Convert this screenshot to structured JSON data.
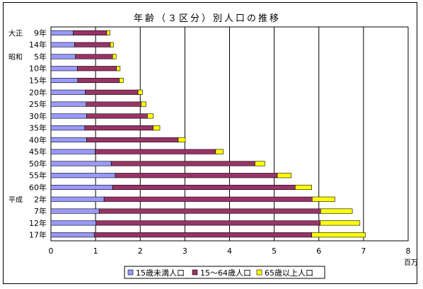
{
  "chart_data": {
    "type": "bar",
    "orientation": "horizontal",
    "stacked": true,
    "title": "年齢（３区分）別人口の推移",
    "unit_label": "百万",
    "xlim": [
      0,
      8
    ],
    "x_ticks": [
      "0",
      "1",
      "2",
      "3",
      "4",
      "5",
      "6",
      "7",
      "8"
    ],
    "grid": true,
    "legend_position": "bottom",
    "category_labels": [
      {
        "era": "大正",
        "year": "9年"
      },
      {
        "era": "",
        "year": "14年"
      },
      {
        "era": "昭和",
        "year": "5年"
      },
      {
        "era": "",
        "year": "10年"
      },
      {
        "era": "",
        "year": "15年"
      },
      {
        "era": "",
        "year": "20年"
      },
      {
        "era": "",
        "year": "25年"
      },
      {
        "era": "",
        "year": "30年"
      },
      {
        "era": "",
        "year": "35年"
      },
      {
        "era": "",
        "year": "40年"
      },
      {
        "era": "",
        "year": "45年"
      },
      {
        "era": "",
        "year": "50年"
      },
      {
        "era": "",
        "year": "55年"
      },
      {
        "era": "",
        "year": "60年"
      },
      {
        "era": "平成",
        "year": "2年"
      },
      {
        "era": "",
        "year": "7年"
      },
      {
        "era": "",
        "year": "12年"
      },
      {
        "era": "",
        "year": "17年"
      }
    ],
    "series": [
      {
        "name": "15歳未満人口",
        "color": "#9999ff",
        "values": [
          0.5,
          0.53,
          0.55,
          0.59,
          0.6,
          0.77,
          0.79,
          0.8,
          0.76,
          0.8,
          0.99,
          1.35,
          1.44,
          1.38,
          1.19,
          1.08,
          1.01,
          0.97
        ]
      },
      {
        "name": "15～64歳人口",
        "color": "#993366",
        "values": [
          0.75,
          0.8,
          0.83,
          0.88,
          0.93,
          1.18,
          1.23,
          1.36,
          1.53,
          2.05,
          2.7,
          3.22,
          3.63,
          4.09,
          4.66,
          4.96,
          5.02,
          4.87
        ]
      },
      {
        "name": "65歳以上人口",
        "color": "#ffff00",
        "values": [
          0.07,
          0.07,
          0.08,
          0.08,
          0.09,
          0.1,
          0.11,
          0.13,
          0.15,
          0.16,
          0.17,
          0.22,
          0.31,
          0.37,
          0.51,
          0.71,
          0.89,
          1.2
        ]
      }
    ]
  }
}
